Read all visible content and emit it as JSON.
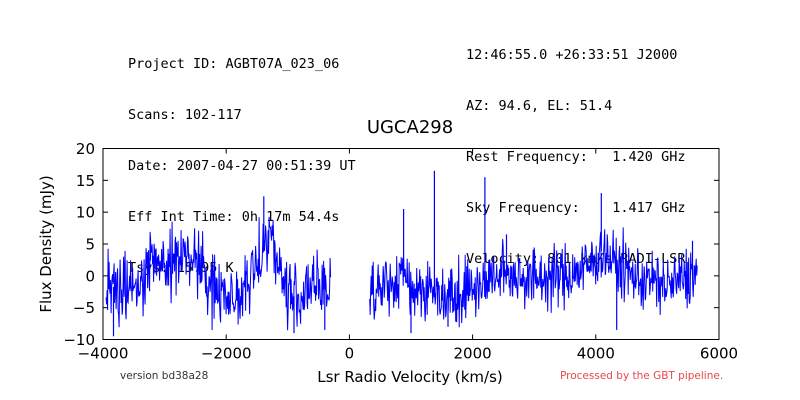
{
  "header_left": [
    "Project ID: AGBT07A_023_06",
    "Scans: 102-117",
    "Date: 2007-04-27 00:51:39 UT",
    "Eff Int Time: 0h 17m 54.4s",
    "Tsys: 15.95 K"
  ],
  "header_right": [
    "12:46:55.0 +26:33:51 J2000",
    "AZ: 94.6, EL: 51.4",
    "Rest Frequency:   1.420 GHz",
    "Sky Frequency:    1.417 GHz",
    "Velocity: 801 km/s RADI-LSR"
  ],
  "footer": {
    "version": "version bd38a28",
    "processed": "Processed by the GBT pipeline."
  },
  "colors": {
    "line": "#0000ff",
    "processed_text": "#e8474a"
  },
  "chart_data": {
    "type": "line",
    "title": "UGCA298",
    "xlabel": "Lsr Radio Velocity (km/s)",
    "ylabel": "Flux Density (mJy)",
    "xlim": [
      -4000,
      6000
    ],
    "ylim": [
      -10,
      20
    ],
    "xticks": [
      -4000,
      -2000,
      0,
      2000,
      4000,
      6000
    ],
    "xtick_labels": [
      "−4000",
      "−2000",
      "0",
      "2000",
      "4000",
      "6000"
    ],
    "yticks": [
      -10,
      -5,
      0,
      5,
      10,
      15,
      20
    ],
    "ytick_labels": [
      "−10",
      "−5",
      "0",
      "5",
      "10",
      "15",
      "20"
    ],
    "grid": false,
    "series": [
      {
        "segments": [
          {
            "x_range": [
              -3950,
              -300
            ],
            "noise_sigma": 2.6,
            "baseline": [
              [
                -3950,
                -1.5
              ],
              [
                -3700,
                -2.0
              ],
              [
                -3400,
                -1.0
              ],
              [
                -3150,
                4.0
              ],
              [
                -3000,
                1.5
              ],
              [
                -2700,
                3.5
              ],
              [
                -2500,
                2.5
              ],
              [
                -2300,
                -1.5
              ],
              [
                -2000,
                -2.5
              ],
              [
                -1800,
                -3.5
              ],
              [
                -1600,
                -1.0
              ],
              [
                -1450,
                3.5
              ],
              [
                -1300,
                7.0
              ],
              [
                -1200,
                4.0
              ],
              [
                -1050,
                -2.0
              ],
              [
                -850,
                -3.5
              ],
              [
                -600,
                -2.0
              ],
              [
                -300,
                -1.5
              ]
            ]
          },
          {
            "x_range": [
              330,
              5650
            ],
            "noise_sigma": 2.4,
            "baseline": [
              [
                330,
                -1.5
              ],
              [
                700,
                -2.0
              ],
              [
                850,
                0.5
              ],
              [
                1000,
                -1.5
              ],
              [
                1500,
                -3.0
              ],
              [
                2000,
                -2.0
              ],
              [
                2500,
                0.5
              ],
              [
                3000,
                -0.5
              ],
              [
                3500,
                0.0
              ],
              [
                3900,
                1.5
              ],
              [
                4100,
                4.0
              ],
              [
                4300,
                2.0
              ],
              [
                4700,
                -0.5
              ],
              [
                5200,
                -1.5
              ],
              [
                5650,
                0.5
              ]
            ]
          }
        ],
        "spikes": [
          [
            -3830,
            -9.5
          ],
          [
            -3230,
            5.5
          ],
          [
            -1390,
            12.5
          ],
          [
            -900,
            -9.0
          ],
          [
            -400,
            -8.5
          ],
          [
            880,
            10.5
          ],
          [
            1000,
            -9.0
          ],
          [
            1380,
            16.5
          ],
          [
            1600,
            -8.0
          ],
          [
            2200,
            15.5
          ],
          [
            2550,
            6.5
          ],
          [
            4090,
            13.0
          ],
          [
            4340,
            -8.5
          ],
          [
            5570,
            5.5
          ]
        ]
      }
    ]
  }
}
